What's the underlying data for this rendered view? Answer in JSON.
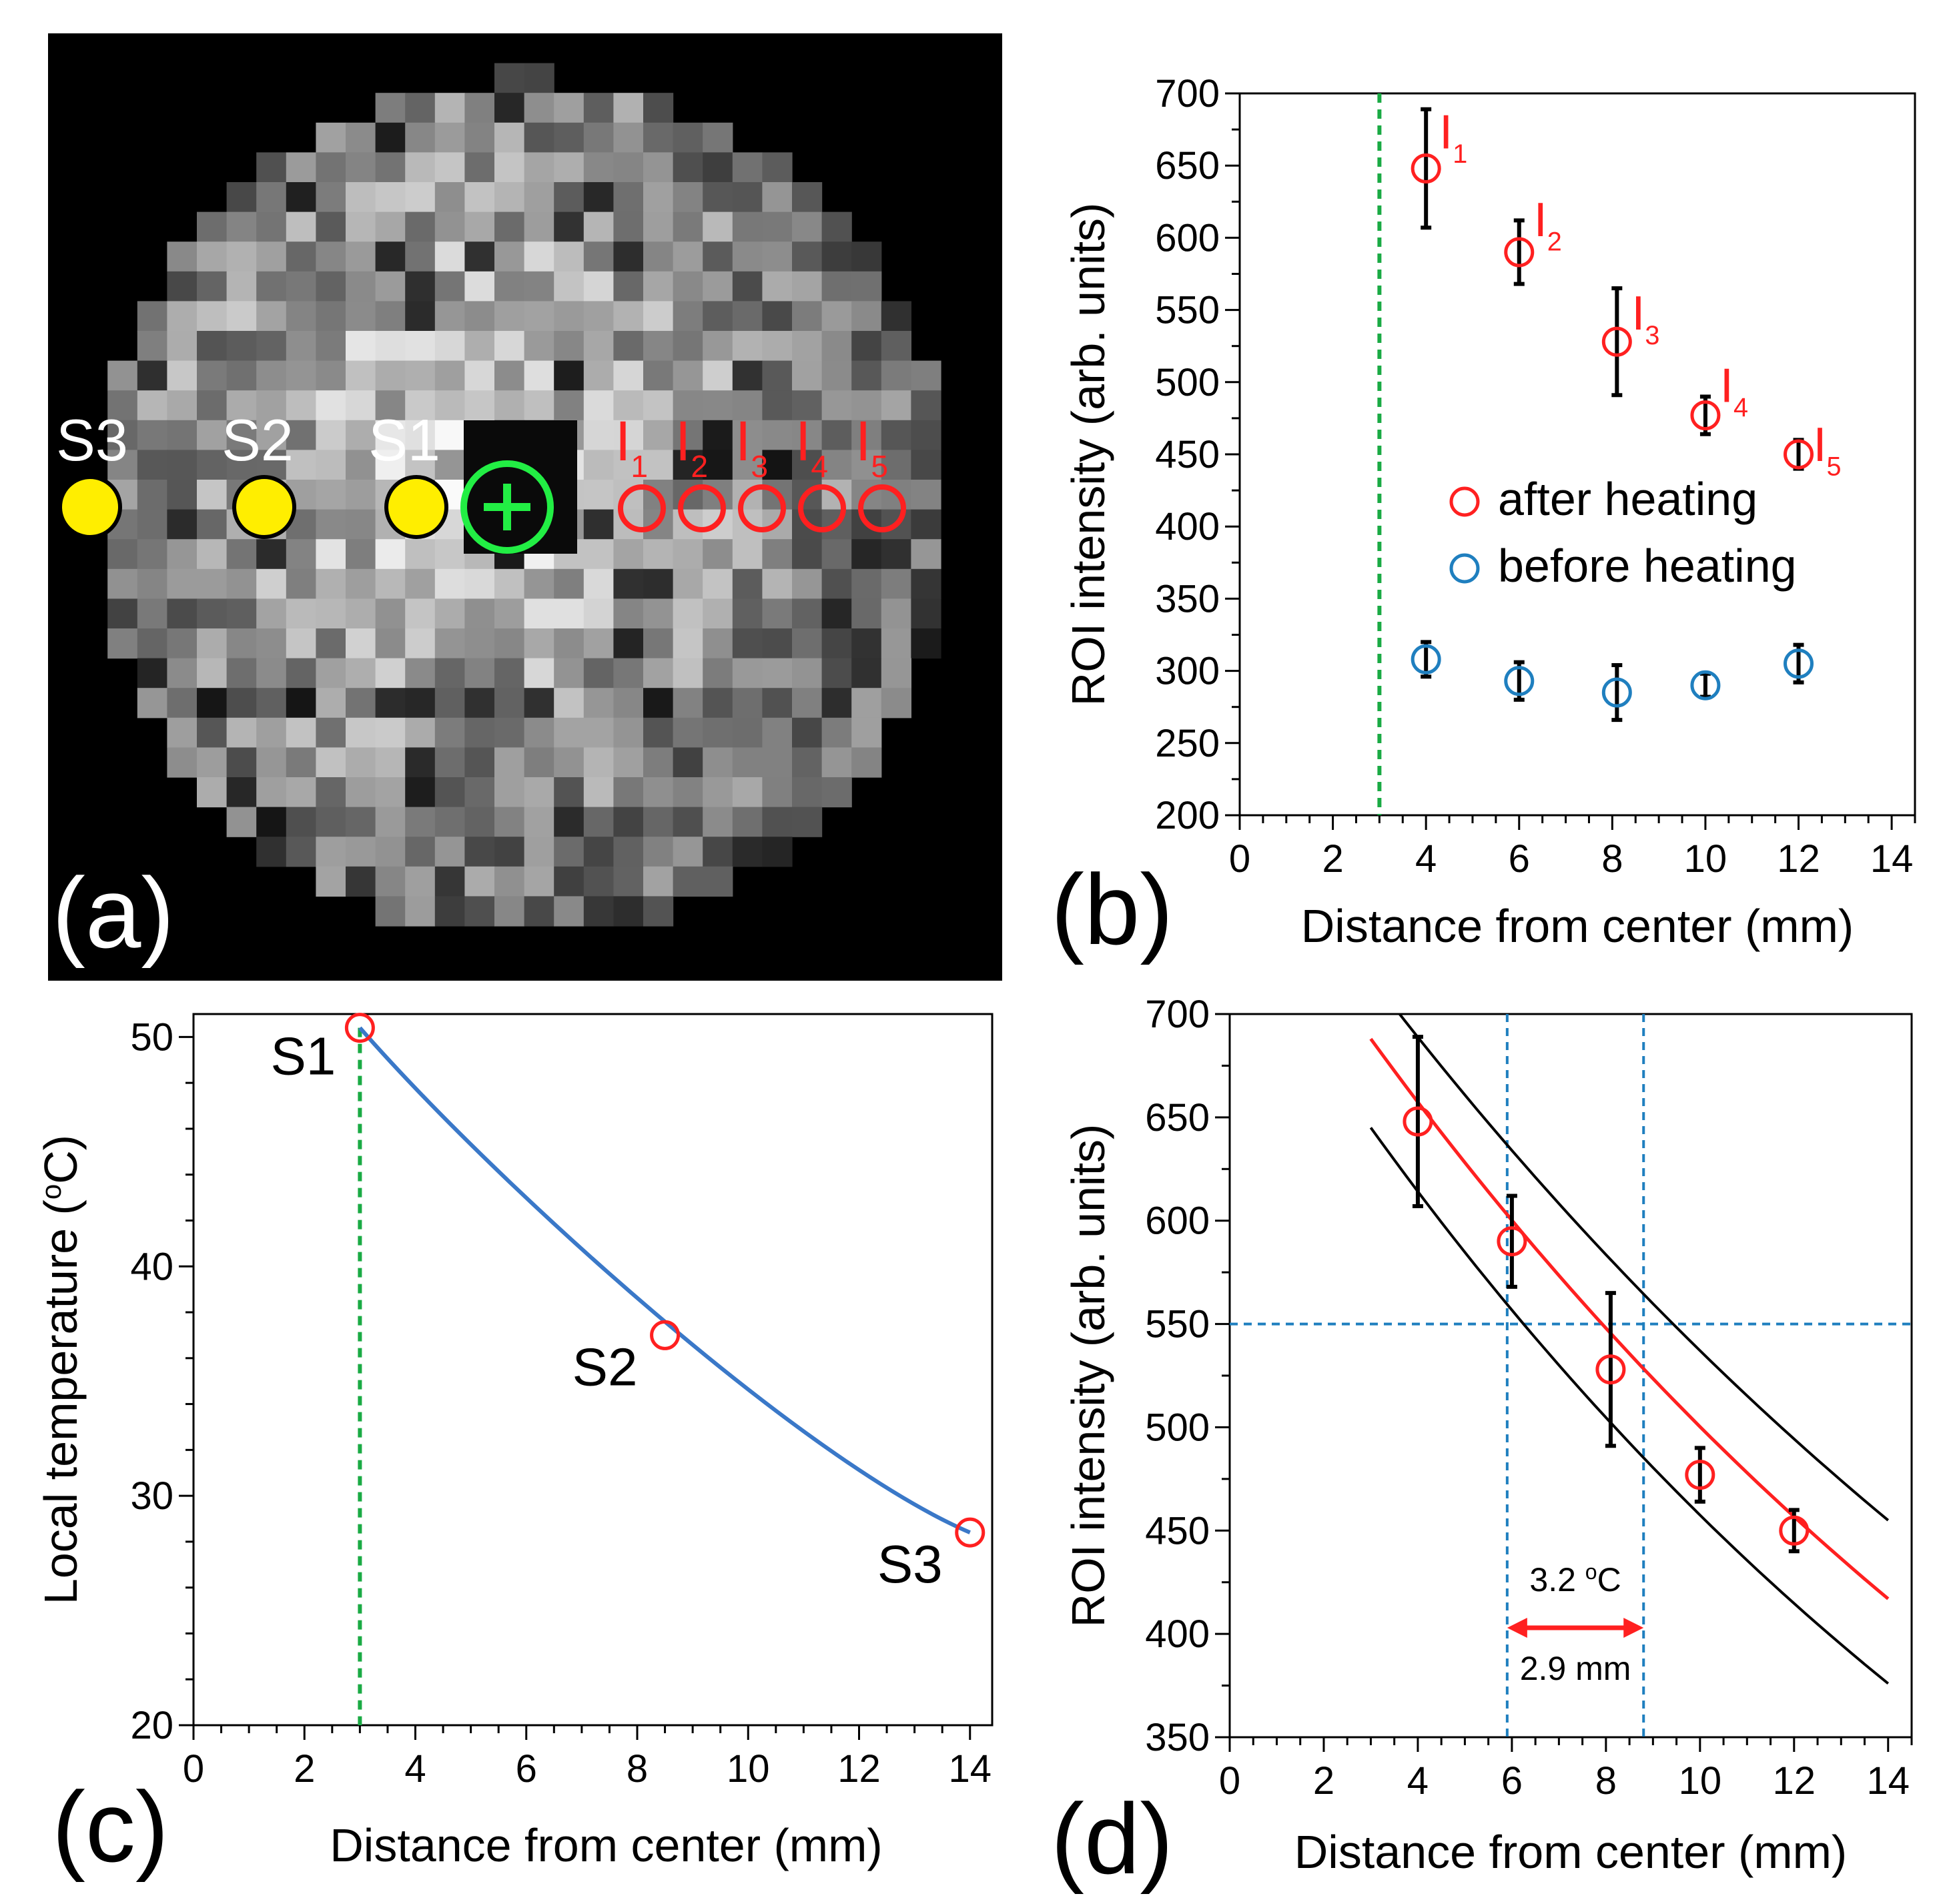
{
  "colors": {
    "after": "#ff2020",
    "before": "#1f7fbf",
    "green": "#1aaa44",
    "yellow": "#ffee00",
    "blue_fit": "#3a78c8",
    "blue_dash": "#1f7fbf",
    "bright_green": "#22ee44"
  },
  "chart_data": [
    {
      "panel": "a",
      "type": "image",
      "panel_label": "(a)",
      "source_labels": [
        "S3",
        "S2",
        "S1"
      ],
      "roi_labels": [
        {
          "base": "I",
          "sub": "1"
        },
        {
          "base": "I",
          "sub": "2"
        },
        {
          "base": "I",
          "sub": "3"
        },
        {
          "base": "I",
          "sub": "4"
        },
        {
          "base": "I",
          "sub": "5"
        }
      ]
    },
    {
      "panel": "b",
      "type": "scatter",
      "panel_label": "(b)",
      "xlabel": "Distance from center (mm)",
      "ylabel": "ROI intensity (arb. units)",
      "xlim": [
        0,
        14.5
      ],
      "ylim": [
        200,
        700
      ],
      "xticks": [
        0,
        2,
        4,
        6,
        8,
        10,
        12,
        14
      ],
      "yticks": [
        200,
        250,
        300,
        350,
        400,
        450,
        500,
        550,
        600,
        650,
        700
      ],
      "vline": 3,
      "series": [
        {
          "name": "after heating",
          "color": "#ff2020",
          "x": [
            4,
            6,
            8.1,
            10,
            12
          ],
          "y": [
            648,
            590,
            528,
            477,
            450
          ],
          "err": [
            41,
            22,
            37,
            13,
            10
          ]
        },
        {
          "name": "before heating",
          "color": "#1f7fbf",
          "x": [
            4,
            6,
            8.1,
            10,
            12
          ],
          "y": [
            308,
            293,
            285,
            290,
            305
          ],
          "err": [
            12,
            13,
            19,
            8,
            13
          ]
        }
      ],
      "point_labels": [
        {
          "base": "I",
          "sub": "1"
        },
        {
          "base": "I",
          "sub": "2"
        },
        {
          "base": "I",
          "sub": "3"
        },
        {
          "base": "I",
          "sub": "4"
        },
        {
          "base": "I",
          "sub": "5"
        }
      ]
    },
    {
      "panel": "c",
      "type": "line",
      "panel_label": "(c)",
      "xlabel": "Distance from center (mm)",
      "ylabel": "Local temperature (oC)",
      "ylabel_prefix": "Local temperature (",
      "ylabel_sup": "o",
      "ylabel_suffix": "C)",
      "xlim": [
        0,
        14.4
      ],
      "ylim": [
        20,
        51
      ],
      "xticks": [
        0,
        2,
        4,
        6,
        8,
        10,
        12,
        14
      ],
      "yticks": [
        20,
        30,
        40,
        50
      ],
      "vline": 3,
      "points": [
        {
          "label": "S1",
          "x": 3,
          "y": 50.4
        },
        {
          "label": "S2",
          "x": 8.5,
          "y": 37
        },
        {
          "label": "S3",
          "x": 14,
          "y": 28.4
        }
      ]
    },
    {
      "panel": "d",
      "type": "scatter",
      "panel_label": "(d)",
      "xlabel": "Distance from center (mm)",
      "ylabel": "ROI intensity (arb. units)",
      "xlim": [
        0,
        14.5
      ],
      "ylim": [
        350,
        700
      ],
      "xticks": [
        0,
        2,
        4,
        6,
        8,
        10,
        12,
        14
      ],
      "yticks": [
        350,
        400,
        450,
        500,
        550,
        600,
        650,
        700
      ],
      "x": [
        4,
        6,
        8.1,
        10,
        12
      ],
      "y": [
        648,
        590,
        528,
        477,
        450
      ],
      "err": [
        41,
        22,
        37,
        13,
        10
      ],
      "fit": {
        "x": [
          3,
          14
        ],
        "y_start": 688,
        "y_end": 417
      },
      "band_upper": {
        "y_start": 718,
        "y_end": 455
      },
      "band_lower": {
        "y_start": 645,
        "y_end": 376
      },
      "hline": 550,
      "vlines": [
        5.9,
        8.8
      ],
      "annotation_temp_value": "3.2 ",
      "annotation_temp_sup": "o",
      "annotation_temp_unit": "C",
      "annotation_dist": "2.9 mm"
    }
  ]
}
